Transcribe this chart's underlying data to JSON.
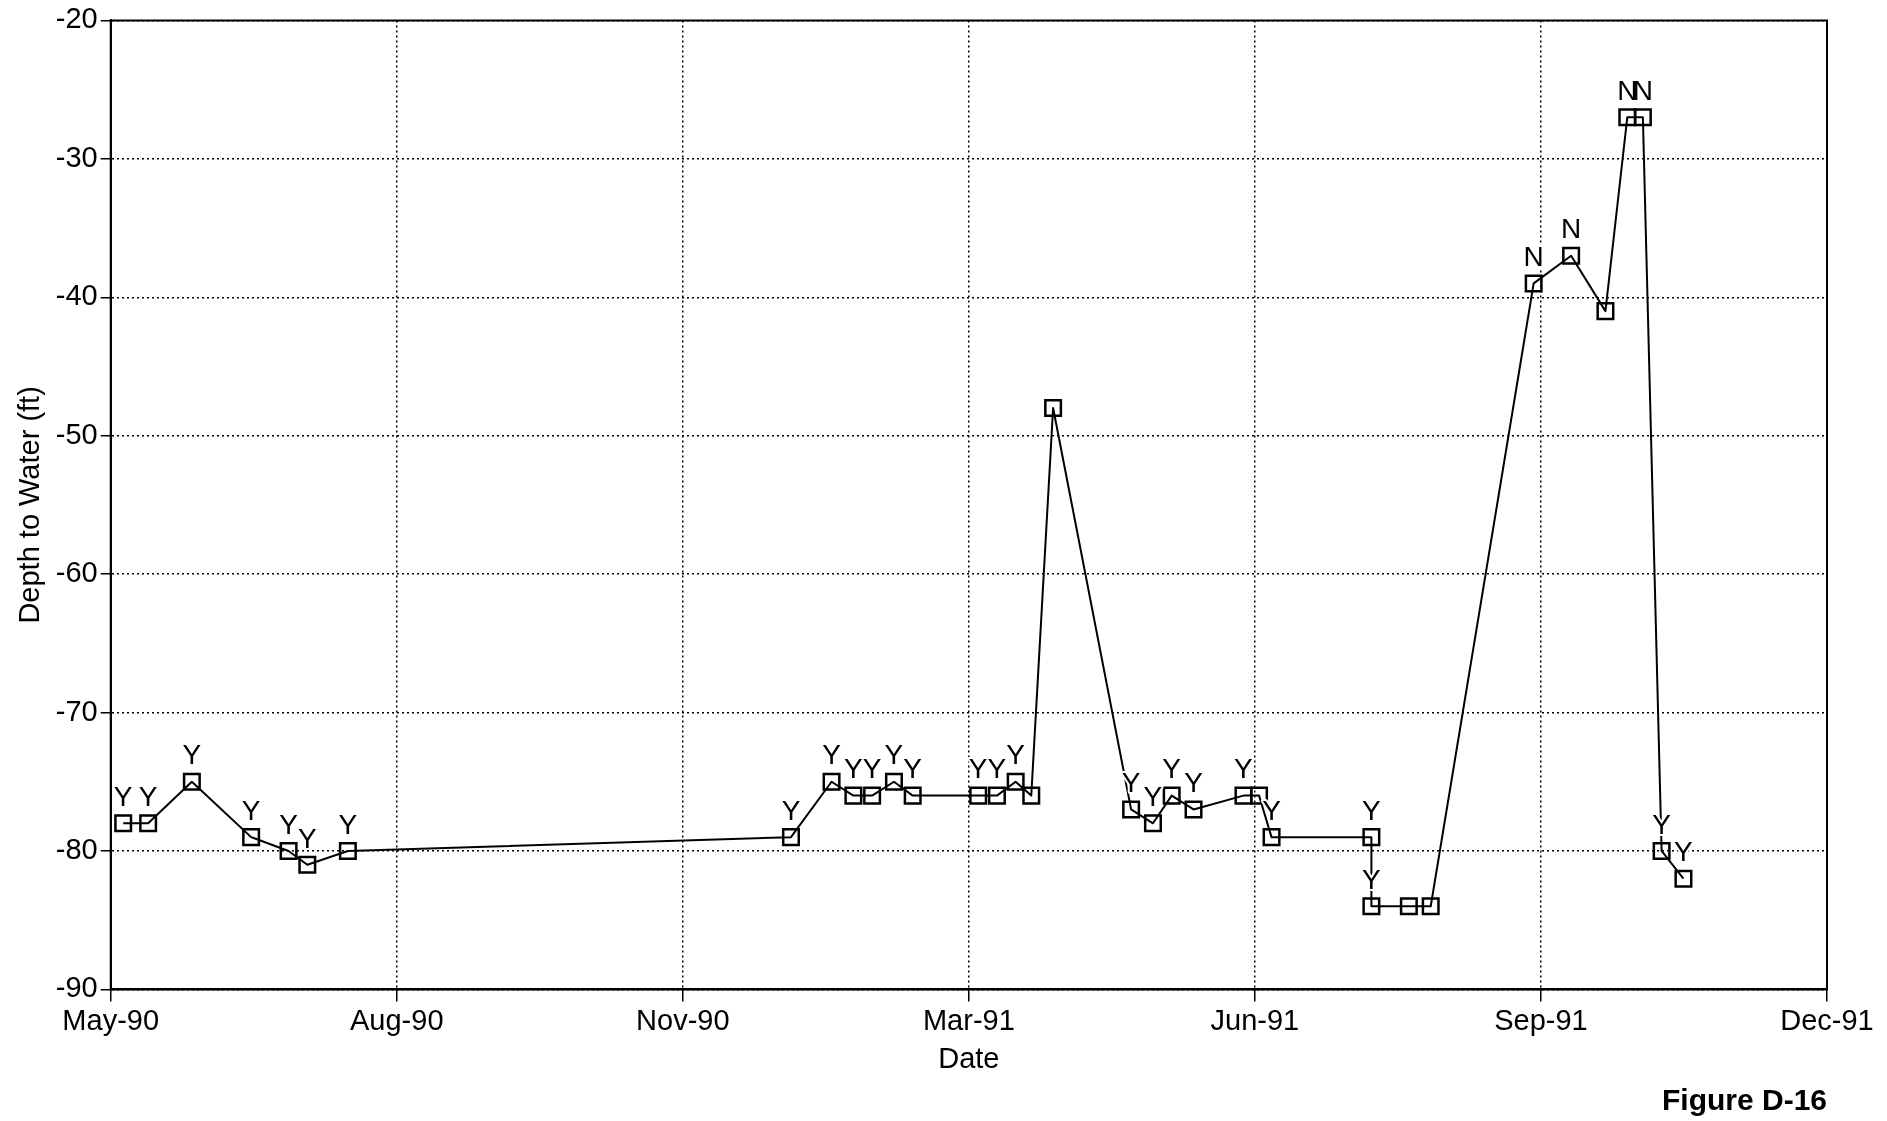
{
  "chart_data": {
    "type": "line",
    "xlabel": "Date",
    "ylabel": "Depth to Water (ft)",
    "x": [
      "1990-06-04",
      "1990-06-12",
      "1990-06-26",
      "1990-07-15",
      "1990-07-27",
      "1990-08-02",
      "1990-08-15",
      "1991-01-04",
      "1991-01-17",
      "1991-01-24",
      "1991-01-30",
      "1991-02-06",
      "1991-02-12",
      "1991-03-05",
      "1991-03-11",
      "1991-03-17",
      "1991-03-22",
      "1991-03-29",
      "1991-04-23",
      "1991-04-30",
      "1991-05-06",
      "1991-05-13",
      "1991-05-29",
      "1991-06-03",
      "1991-06-07",
      "1991-07-09",
      "1991-07-09",
      "1991-07-21",
      "1991-07-28",
      "1991-08-30",
      "1991-09-11",
      "1991-09-22",
      "1991-09-29",
      "1991-10-04",
      "1991-10-10",
      "1991-10-17"
    ],
    "series": [
      {
        "color": "#000000",
        "values": [
          -78,
          -78,
          -75,
          -79,
          -80,
          -81,
          -80,
          -79,
          -75,
          -76,
          -76,
          -75,
          -76,
          -76,
          -76,
          -75,
          -76,
          -48,
          -77,
          -78,
          -76,
          -77,
          -76,
          -76,
          -79,
          -79,
          -84,
          -84,
          -84,
          -39,
          -37,
          -41,
          -27,
          -27,
          -80,
          -82
        ]
      }
    ],
    "xlim": [
      "1990-05-31",
      "1991-12-02"
    ],
    "xticks": [
      {
        "value": "1990-05-31",
        "label": "May-90"
      },
      {
        "value": "1990-08-30T16:00",
        "label": "Aug-90"
      },
      {
        "value": "1990-11-30T08:00",
        "label": "Nov-90"
      },
      {
        "value": "1991-03-02",
        "label": "Mar-91"
      },
      {
        "value": "1991-06-01T16:00",
        "label": "Jun-91"
      },
      {
        "value": "1991-09-01T08:00",
        "label": "Sep-91"
      },
      {
        "value": "1991-12-02",
        "label": "Dec-91"
      }
    ],
    "ylim": [
      -90,
      -20
    ],
    "yticks": [
      -90,
      -80,
      -70,
      -60,
      -50,
      -40,
      -30,
      -20
    ],
    "grid": true,
    "legend": false,
    "marker": "square",
    "line_style": "solid",
    "annotations": [
      {
        "text": "Y",
        "x": "1990-06-04",
        "y": -78
      },
      {
        "text": "Y",
        "x": "1990-06-12",
        "y": -78
      },
      {
        "text": "Y",
        "x": "1990-06-26",
        "y": -75
      },
      {
        "text": "Y",
        "x": "1990-07-15",
        "y": -79
      },
      {
        "text": "Y",
        "x": "1990-07-27",
        "y": -80
      },
      {
        "text": "Y",
        "x": "1990-08-02",
        "y": -81
      },
      {
        "text": "Y",
        "x": "1990-08-15",
        "y": -80
      },
      {
        "text": "Y",
        "x": "1991-01-04",
        "y": -79
      },
      {
        "text": "Y",
        "x": "1991-01-17",
        "y": -75
      },
      {
        "text": "Y",
        "x": "1991-01-24",
        "y": -76
      },
      {
        "text": "Y",
        "x": "1991-01-30",
        "y": -76
      },
      {
        "text": "Y",
        "x": "1991-02-06",
        "y": -75
      },
      {
        "text": "Y",
        "x": "1991-02-12",
        "y": -76
      },
      {
        "text": "Y",
        "x": "1991-03-05",
        "y": -76
      },
      {
        "text": "Y",
        "x": "1991-03-11",
        "y": -76
      },
      {
        "text": "Y",
        "x": "1991-03-17",
        "y": -75
      },
      {
        "text": "Y",
        "x": "1991-04-23",
        "y": -77
      },
      {
        "text": "Y",
        "x": "1991-04-30",
        "y": -78
      },
      {
        "text": "Y",
        "x": "1991-05-06",
        "y": -76
      },
      {
        "text": "Y",
        "x": "1991-05-13",
        "y": -77
      },
      {
        "text": "Y",
        "x": "1991-05-29",
        "y": -76
      },
      {
        "text": "Y",
        "x": "1991-06-07",
        "y": -79
      },
      {
        "text": "Y",
        "x": "1991-07-09",
        "y": -79
      },
      {
        "text": "Y",
        "x": "1991-07-09",
        "y": -84
      },
      {
        "text": "N",
        "x": "1991-08-30",
        "y": -39
      },
      {
        "text": "N",
        "x": "1991-09-11",
        "y": -37
      },
      {
        "text": "N",
        "x": "1991-09-29",
        "y": -27
      },
      {
        "text": "N",
        "x": "1991-10-04",
        "y": -27
      },
      {
        "text": "Y",
        "x": "1991-10-10",
        "y": -80
      },
      {
        "text": "Y",
        "x": "1991-10-17",
        "y": -82
      },
      "Figure D-16"
    ]
  }
}
